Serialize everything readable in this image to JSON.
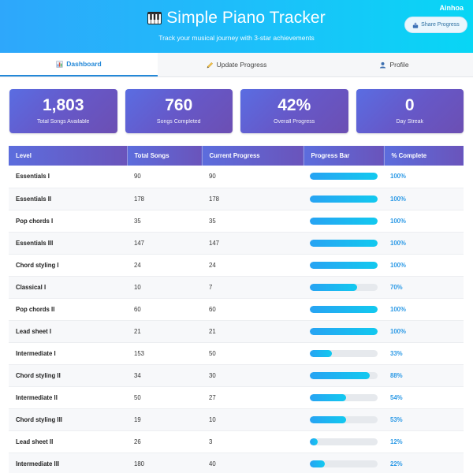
{
  "header": {
    "title": "Simple Piano Tracker",
    "subtitle": "Track your musical journey with 3-star achievements",
    "user": "Ainhoa",
    "share_label": "Share Progress"
  },
  "tabs": [
    {
      "label": "Dashboard",
      "icon": "bar-chart-icon",
      "active": true
    },
    {
      "label": "Update Progress",
      "icon": "pencil-icon",
      "active": false
    },
    {
      "label": "Profile",
      "icon": "user-icon",
      "active": false
    }
  ],
  "stats": [
    {
      "value": "1,803",
      "label": "Total Songs Available"
    },
    {
      "value": "760",
      "label": "Songs Completed"
    },
    {
      "value": "42%",
      "label": "Overall Progress"
    },
    {
      "value": "0",
      "label": "Day Streak"
    }
  ],
  "table": {
    "headers": [
      "Level",
      "Total Songs",
      "Current Progress",
      "Progress Bar",
      "% Complete"
    ],
    "rows": [
      {
        "level": "Essentials I",
        "total": "90",
        "current": "90",
        "pct": "100%",
        "fill": 1.0
      },
      {
        "level": "Essentials II",
        "total": "178",
        "current": "178",
        "pct": "100%",
        "fill": 1.0
      },
      {
        "level": "Pop chords I",
        "total": "35",
        "current": "35",
        "pct": "100%",
        "fill": 1.0
      },
      {
        "level": "Essentials III",
        "total": "147",
        "current": "147",
        "pct": "100%",
        "fill": 1.0
      },
      {
        "level": "Chord styling I",
        "total": "24",
        "current": "24",
        "pct": "100%",
        "fill": 1.0
      },
      {
        "level": "Classical I",
        "total": "10",
        "current": "7",
        "pct": "70%",
        "fill": 0.7
      },
      {
        "level": "Pop chords II",
        "total": "60",
        "current": "60",
        "pct": "100%",
        "fill": 1.0
      },
      {
        "level": "Lead sheet I",
        "total": "21",
        "current": "21",
        "pct": "100%",
        "fill": 1.0
      },
      {
        "level": "Intermediate I",
        "total": "153",
        "current": "50",
        "pct": "33%",
        "fill": 0.33
      },
      {
        "level": "Chord styling II",
        "total": "34",
        "current": "30",
        "pct": "88%",
        "fill": 0.88
      },
      {
        "level": "Intermediate II",
        "total": "50",
        "current": "27",
        "pct": "54%",
        "fill": 0.54
      },
      {
        "level": "Chord styling III",
        "total": "19",
        "current": "10",
        "pct": "53%",
        "fill": 0.53
      },
      {
        "level": "Lead sheet II",
        "total": "26",
        "current": "3",
        "pct": "12%",
        "fill": 0.12
      },
      {
        "level": "Intermediate III",
        "total": "180",
        "current": "40",
        "pct": "22%",
        "fill": 0.22
      }
    ]
  },
  "colors": {
    "header_gradient_start": "#2ea7fb",
    "header_gradient_end": "#08d6f5",
    "card_gradient_start": "#5a6de2",
    "card_gradient_end": "#6c4fb3",
    "accent": "#2388d8",
    "percent_text": "#2d9ae6"
  }
}
